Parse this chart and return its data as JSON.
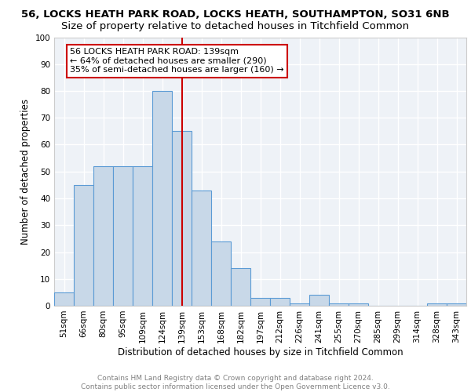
{
  "title1": "56, LOCKS HEATH PARK ROAD, LOCKS HEATH, SOUTHAMPTON, SO31 6NB",
  "title2": "Size of property relative to detached houses in Titchfield Common",
  "xlabel": "Distribution of detached houses by size in Titchfield Common",
  "ylabel": "Number of detached properties",
  "bin_labels": [
    "51sqm",
    "66sqm",
    "80sqm",
    "95sqm",
    "109sqm",
    "124sqm",
    "139sqm",
    "153sqm",
    "168sqm",
    "182sqm",
    "197sqm",
    "212sqm",
    "226sqm",
    "241sqm",
    "255sqm",
    "270sqm",
    "285sqm",
    "299sqm",
    "314sqm",
    "328sqm",
    "343sqm"
  ],
  "bin_values": [
    5,
    45,
    52,
    52,
    52,
    80,
    65,
    43,
    24,
    14,
    3,
    3,
    1,
    4,
    1,
    1,
    0,
    0,
    0,
    1,
    1
  ],
  "bar_color": "#c8d8e8",
  "bar_edge_color": "#5b9bd5",
  "vline_x_index": 6,
  "vline_color": "#cc0000",
  "annotation_line1": "56 LOCKS HEATH PARK ROAD: 139sqm",
  "annotation_line2": "← 64% of detached houses are smaller (290)",
  "annotation_line3": "35% of semi-detached houses are larger (160) →",
  "annotation_box_color": "#ffffff",
  "annotation_box_edge_color": "#cc0000",
  "footnote": "Contains HM Land Registry data © Crown copyright and database right 2024.\nContains public sector information licensed under the Open Government Licence v3.0.",
  "ylim": [
    0,
    100
  ],
  "yticks": [
    0,
    10,
    20,
    30,
    40,
    50,
    60,
    70,
    80,
    90,
    100
  ],
  "background_color": "#eef2f7",
  "grid_color": "#ffffff",
  "title1_fontsize": 9.5,
  "title2_fontsize": 9.5,
  "xlabel_fontsize": 8.5,
  "ylabel_fontsize": 8.5,
  "annotation_fontsize": 8,
  "tick_fontsize": 7.5,
  "footnote_fontsize": 6.5
}
